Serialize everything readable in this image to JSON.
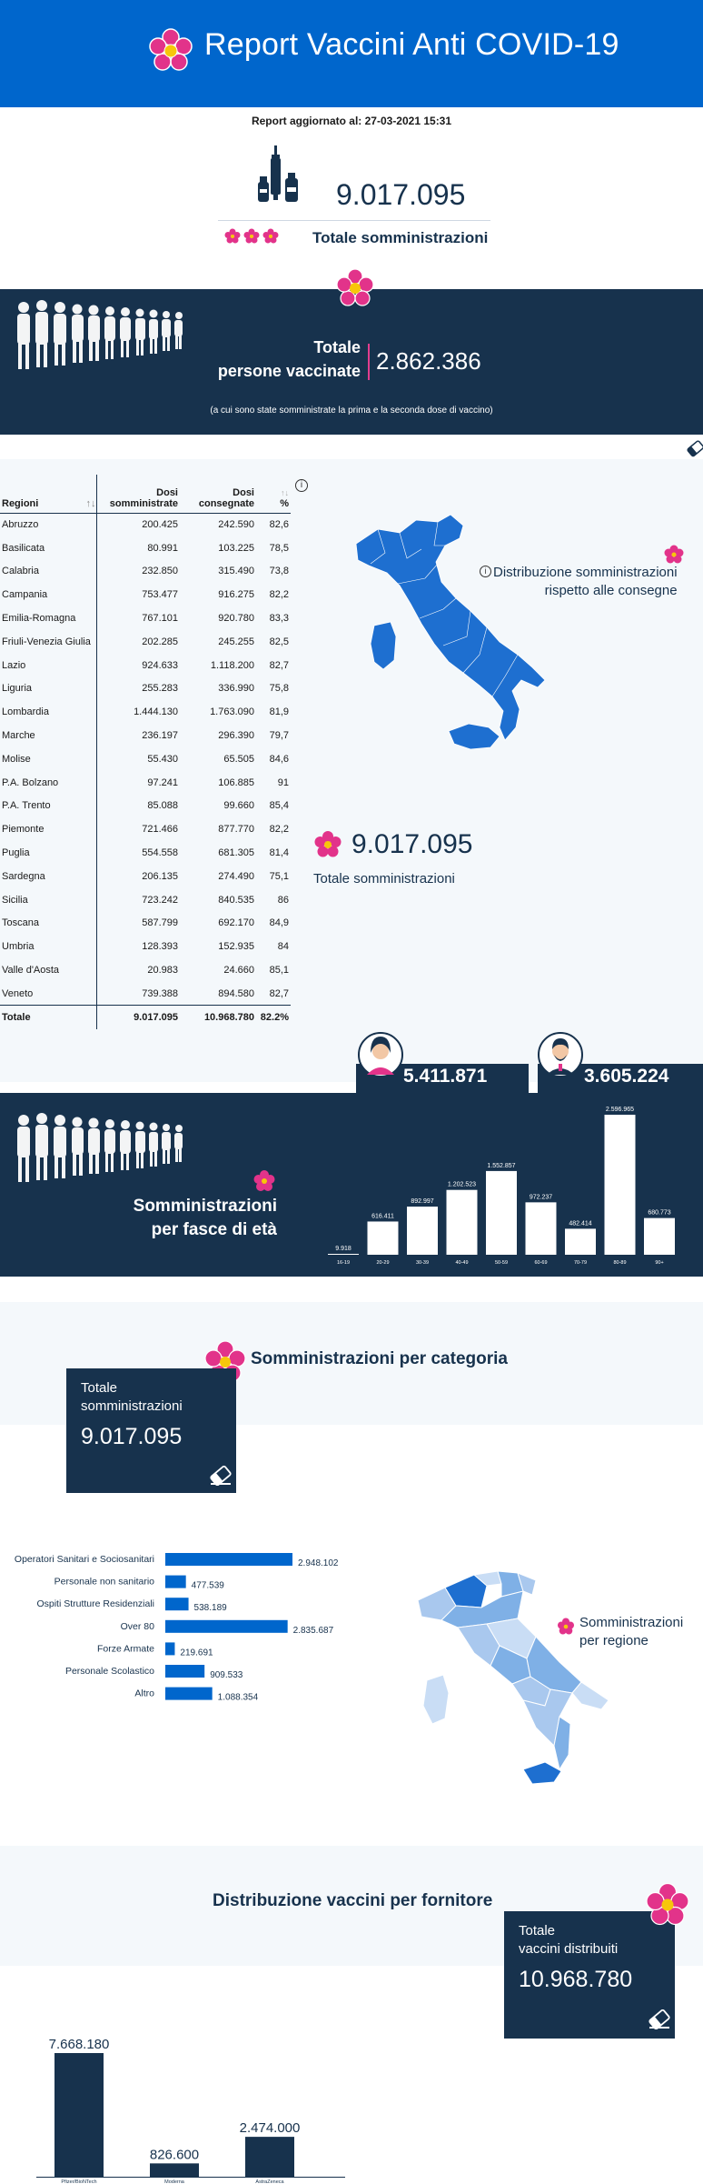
{
  "header": {
    "title": "Report Vaccini Anti COVID-19"
  },
  "report_updated": "Report aggiornato al: 27-03-2021 15:31",
  "totals": {
    "administrations": "9.017.095",
    "administrations_label": "Totale somministrazioni"
  },
  "vaccinated": {
    "label_line1": "Totale",
    "label_line2": "persone vaccinate",
    "value": "2.862.386",
    "note": "(a cui sono state somministrate la prima e la seconda dose di vaccino)"
  },
  "regions_table": {
    "headers": [
      "Regioni",
      "Dosi somministrate",
      "Dosi consegnate",
      "%"
    ],
    "rows": [
      [
        "Abruzzo",
        "200.425",
        "242.590",
        "82,6"
      ],
      [
        "Basilicata",
        "80.991",
        "103.225",
        "78,5"
      ],
      [
        "Calabria",
        "232.850",
        "315.490",
        "73,8"
      ],
      [
        "Campania",
        "753.477",
        "916.275",
        "82,2"
      ],
      [
        "Emilia-Romagna",
        "767.101",
        "920.780",
        "83,3"
      ],
      [
        "Friuli-Venezia Giulia",
        "202.285",
        "245.255",
        "82,5"
      ],
      [
        "Lazio",
        "924.633",
        "1.118.200",
        "82,7"
      ],
      [
        "Liguria",
        "255.283",
        "336.990",
        "75,8"
      ],
      [
        "Lombardia",
        "1.444.130",
        "1.763.090",
        "81,9"
      ],
      [
        "Marche",
        "236.197",
        "296.390",
        "79,7"
      ],
      [
        "Molise",
        "55.430",
        "65.505",
        "84,6"
      ],
      [
        "P.A. Bolzano",
        "97.241",
        "106.885",
        "91"
      ],
      [
        "P.A. Trento",
        "85.088",
        "99.660",
        "85,4"
      ],
      [
        "Piemonte",
        "721.466",
        "877.770",
        "82,2"
      ],
      [
        "Puglia",
        "554.558",
        "681.305",
        "81,4"
      ],
      [
        "Sardegna",
        "206.135",
        "274.490",
        "75,1"
      ],
      [
        "Sicilia",
        "723.242",
        "840.535",
        "86"
      ],
      [
        "Toscana",
        "587.799",
        "692.170",
        "84,9"
      ],
      [
        "Umbria",
        "128.393",
        "152.935",
        "84"
      ],
      [
        "Valle d'Aosta",
        "20.983",
        "24.660",
        "85,1"
      ],
      [
        "Veneto",
        "739.388",
        "894.580",
        "82,7"
      ]
    ],
    "total": [
      "Totale",
      "9.017.095",
      "10.968.780",
      "82.2%"
    ]
  },
  "distribution": {
    "label_line1": "Distribuzione somministrazioni",
    "label_line2": "rispetto alle consegne",
    "total_value": "9.017.095",
    "total_label": "Totale somministrazioni"
  },
  "gender": {
    "female": "5.411.871",
    "male": "3.605.224"
  },
  "age_section": {
    "label_line1": "Somministrazioni",
    "label_line2": "per fasce di età"
  },
  "category_section": {
    "title": "Somministrazioni per categoria",
    "box_line1": "Totale",
    "box_line2": "somministrazioni",
    "box_value": "9.017.095",
    "map_label_line1": "Somministrazioni",
    "map_label_line2": "per regione"
  },
  "supplier_section": {
    "title": "Distribuzione vaccini per fornitore",
    "box_line1": "Totale",
    "box_line2": "vaccini distribuiti",
    "box_value": "10.968.780"
  },
  "colors": {
    "header_blue": "#0066cc",
    "navy": "#17324d",
    "accent_pink": "#e2338a",
    "bar_blue": "#0066cc"
  },
  "chart_data": [
    {
      "type": "bar",
      "categories": [
        "16-19",
        "20-29",
        "30-39",
        "40-49",
        "50-59",
        "60-69",
        "70-79",
        "80-89",
        "90+"
      ],
      "values": [
        9918,
        616411,
        892997,
        1202523,
        1552857,
        972237,
        482414,
        2596965,
        680773
      ],
      "labels": [
        "9.918",
        "616.411",
        "892.997",
        "1.202.523",
        "1.552.857",
        "972.237",
        "482.414",
        "2.596.965",
        "680.773"
      ],
      "title": "",
      "xlabel": "",
      "ylabel": ""
    },
    {
      "type": "bar",
      "orientation": "horizontal",
      "categories": [
        "Operatori Sanitari e Sociosanitari",
        "Personale non sanitario",
        "Ospiti Strutture Residenziali",
        "Over 80",
        "Forze Armate",
        "Personale Scolastico",
        "Altro"
      ],
      "values": [
        2948102,
        477539,
        538189,
        2835687,
        219691,
        909533,
        1088354
      ],
      "labels": [
        "2.948.102",
        "477.539",
        "538.189",
        "2.835.687",
        "219.691",
        "909.533",
        "1.088.354"
      ],
      "title": "",
      "xlabel": "",
      "ylabel": ""
    },
    {
      "type": "bar",
      "categories": [
        "Pfizer/BioNTech",
        "Moderna",
        "AstraZeneca"
      ],
      "values": [
        7668180,
        826600,
        2474000
      ],
      "labels": [
        "7.668.180",
        "826.600",
        "2.474.000"
      ],
      "title": "",
      "xlabel": "",
      "ylabel": ""
    }
  ]
}
